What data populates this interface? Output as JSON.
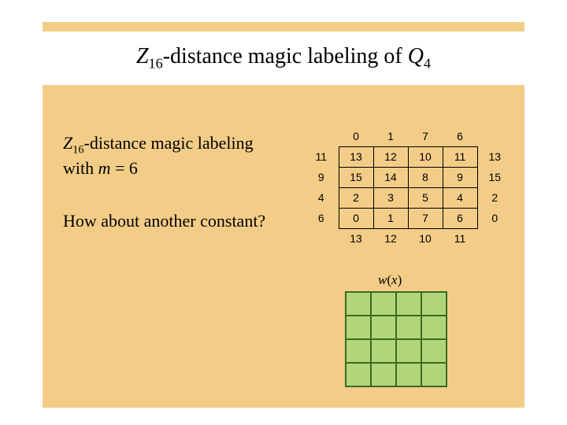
{
  "title": {
    "prefix_italic": "Z",
    "prefix_sub": "16",
    "middle": "-distance magic labeling of ",
    "suffix_italic": "Q",
    "suffix_sub": "4"
  },
  "body": {
    "line1_prefix_italic": "Z",
    "line1_sub": "16",
    "line1_rest": "-distance magic labeling",
    "line2_prefix": "with ",
    "line2_m": "m",
    "line2_rest": " = 6"
  },
  "question": "How about another constant?",
  "table": {
    "rows": [
      [
        "",
        "0",
        "1",
        "7",
        "6",
        ""
      ],
      [
        "11",
        "13",
        "12",
        "10",
        "11",
        "13"
      ],
      [
        "9",
        "15",
        "14",
        "8",
        "9",
        "15"
      ],
      [
        "4",
        "2",
        "3",
        "5",
        "4",
        "2"
      ],
      [
        "6",
        "0",
        "1",
        "7",
        "6",
        "0"
      ],
      [
        "",
        "13",
        "12",
        "10",
        "11",
        ""
      ]
    ],
    "core_row_start": 1,
    "core_row_end": 4,
    "core_col_start": 1,
    "core_col_end": 4
  },
  "wx": {
    "w": "w",
    "open": "(",
    "x": "x",
    "close": ")"
  },
  "green_grid": {
    "rows": 4,
    "cols": 4
  },
  "colors": {
    "slide_bg": "#f3cd87",
    "green_fill": "#b3d57a",
    "green_border": "#3a6b1f"
  }
}
